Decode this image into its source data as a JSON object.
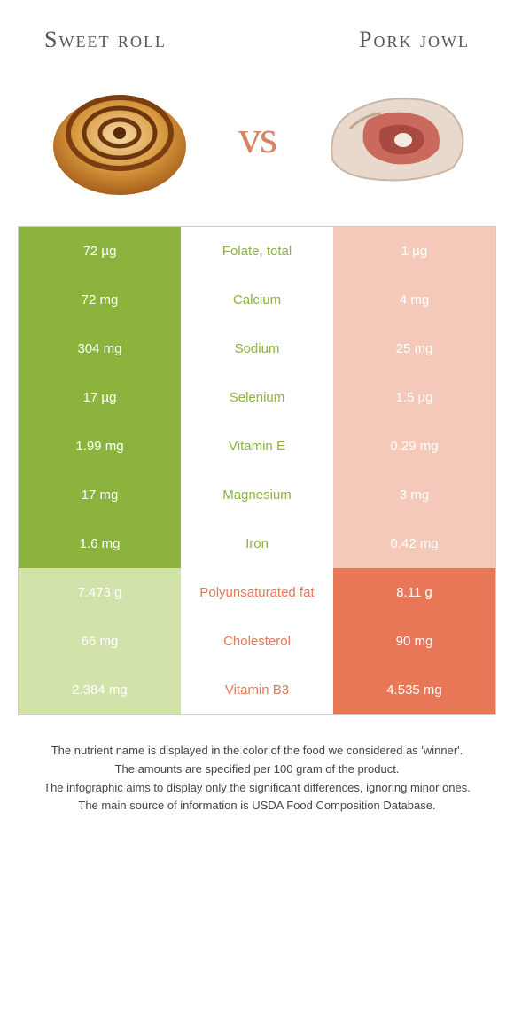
{
  "titles": {
    "left": "Sweet roll",
    "right": "Pork jowl"
  },
  "vs": "vs",
  "colors": {
    "left_win": "#8bb33d",
    "left_lose": "#d1e3ab",
    "right_win": "#e77756",
    "right_lose": "#f4c9b9",
    "vs_text": "#d68466"
  },
  "rows": [
    {
      "left": "72 µg",
      "label": "Folate, total",
      "right": "1 µg",
      "winner": "left"
    },
    {
      "left": "72 mg",
      "label": "Calcium",
      "right": "4 mg",
      "winner": "left"
    },
    {
      "left": "304 mg",
      "label": "Sodium",
      "right": "25 mg",
      "winner": "left"
    },
    {
      "left": "17 µg",
      "label": "Selenium",
      "right": "1.5 µg",
      "winner": "left"
    },
    {
      "left": "1.99 mg",
      "label": "Vitamin E",
      "right": "0.29 mg",
      "winner": "left"
    },
    {
      "left": "17 mg",
      "label": "Magnesium",
      "right": "3 mg",
      "winner": "left"
    },
    {
      "left": "1.6 mg",
      "label": "Iron",
      "right": "0.42 mg",
      "winner": "left"
    },
    {
      "left": "7.473 g",
      "label": "Polyunsaturated fat",
      "right": "8.11 g",
      "winner": "right"
    },
    {
      "left": "66 mg",
      "label": "Cholesterol",
      "right": "90 mg",
      "winner": "right"
    },
    {
      "left": "2.384 mg",
      "label": "Vitamin B3",
      "right": "4.535 mg",
      "winner": "right"
    }
  ],
  "footer": [
    "The nutrient name is displayed in the color of the food we considered as 'winner'.",
    "The amounts are specified per 100 gram of the product.",
    "The infographic aims to display only the significant differences, ignoring minor ones.",
    "The main source of information is USDA Food Composition Database."
  ]
}
